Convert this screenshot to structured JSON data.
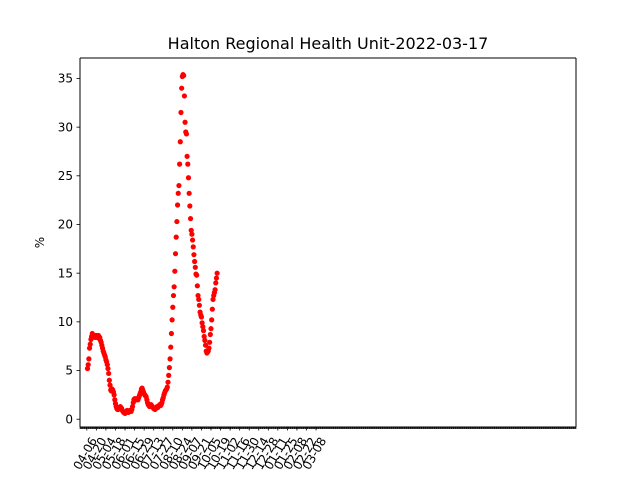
{
  "chart_data": {
    "type": "scatter",
    "title": "Halton Regional Health Unit-2022-03-17",
    "xlabel": "",
    "ylabel": "%",
    "x_type": "date",
    "xlim": [
      "2020-03-27",
      "2022-03-24"
    ],
    "ylim": [
      -0.8,
      37.1
    ],
    "yticks": [
      0,
      5,
      10,
      15,
      20,
      25,
      30,
      35
    ],
    "xticks": [
      "2020-04-06",
      "2020-04-20",
      "2020-05-04",
      "2020-05-18",
      "2020-06-01",
      "2020-06-15",
      "2020-06-29",
      "2020-07-13",
      "2020-07-27",
      "2020-08-10",
      "2020-08-24",
      "2020-09-07",
      "2020-09-21",
      "2020-10-05",
      "2020-10-19",
      "2020-11-02",
      "2020-11-16",
      "2020-11-30",
      "2020-12-14",
      "2020-12-28",
      "2021-01-11",
      "2021-01-25",
      "2021-02-08",
      "2021-02-22",
      "2021-03-08"
    ],
    "xtick_labels": [
      "04-06",
      "04-20",
      "05-04",
      "05-18",
      "06-01",
      "06-15",
      "06-29",
      "07-13",
      "07-27",
      "08-10",
      "08-24",
      "09-07",
      "09-21",
      "10-05",
      "10-19",
      "11-02",
      "11-16",
      "11-30",
      "12-14",
      "12-28",
      "01-11",
      "01-25",
      "02-08",
      "02-22",
      "03-08"
    ],
    "minor_ticks": "daily",
    "marker_color": "#ff0000",
    "grid": false,
    "series": [
      {
        "marker": "circle",
        "color": "#ff0000",
        "points": [
          [
            "2020-04-07",
            5.2
          ],
          [
            "2020-04-08",
            5.6
          ],
          [
            "2020-04-09",
            6.2
          ],
          [
            "2020-04-10",
            7.3
          ],
          [
            "2020-04-11",
            7.7
          ],
          [
            "2020-04-12",
            8.2
          ],
          [
            "2020-04-13",
            8.5
          ],
          [
            "2020-04-14",
            8.8
          ],
          [
            "2020-04-15",
            8.6
          ],
          [
            "2020-04-16",
            8.5
          ],
          [
            "2020-04-17",
            8.6
          ],
          [
            "2020-04-18",
            8.4
          ],
          [
            "2020-04-19",
            8.5
          ],
          [
            "2020-04-20",
            8.6
          ],
          [
            "2020-04-21",
            8.4
          ],
          [
            "2020-04-22",
            8.5
          ],
          [
            "2020-04-23",
            8.6
          ],
          [
            "2020-04-24",
            8.3
          ],
          [
            "2020-04-25",
            8.4
          ],
          [
            "2020-04-26",
            8.1
          ],
          [
            "2020-04-27",
            7.9
          ],
          [
            "2020-04-28",
            7.6
          ],
          [
            "2020-04-29",
            7.3
          ],
          [
            "2020-04-30",
            7.0
          ],
          [
            "2020-05-01",
            6.8
          ],
          [
            "2020-05-02",
            6.6
          ],
          [
            "2020-05-03",
            6.4
          ],
          [
            "2020-05-04",
            6.1
          ],
          [
            "2020-05-05",
            5.9
          ],
          [
            "2020-05-06",
            5.6
          ],
          [
            "2020-05-07",
            5.2
          ],
          [
            "2020-05-08",
            4.7
          ],
          [
            "2020-05-09",
            4.0
          ],
          [
            "2020-05-10",
            3.5
          ],
          [
            "2020-05-11",
            3.0
          ],
          [
            "2020-05-12",
            2.9
          ],
          [
            "2020-05-13",
            3.1
          ],
          [
            "2020-05-14",
            3.0
          ],
          [
            "2020-05-15",
            2.8
          ],
          [
            "2020-05-16",
            2.5
          ],
          [
            "2020-05-17",
            2.0
          ],
          [
            "2020-05-18",
            1.6
          ],
          [
            "2020-05-19",
            1.3
          ],
          [
            "2020-05-20",
            1.1
          ],
          [
            "2020-05-21",
            1.0
          ],
          [
            "2020-05-22",
            1.0
          ],
          [
            "2020-05-23",
            1.1
          ],
          [
            "2020-05-24",
            1.2
          ],
          [
            "2020-05-25",
            1.3
          ],
          [
            "2020-05-26",
            1.2
          ],
          [
            "2020-05-27",
            1.1
          ],
          [
            "2020-05-28",
            0.9
          ],
          [
            "2020-05-29",
            0.8
          ],
          [
            "2020-05-30",
            0.7
          ],
          [
            "2020-05-31",
            0.7
          ],
          [
            "2020-06-01",
            0.6
          ],
          [
            "2020-06-02",
            0.7
          ],
          [
            "2020-06-03",
            0.8
          ],
          [
            "2020-06-04",
            0.9
          ],
          [
            "2020-06-05",
            0.8
          ],
          [
            "2020-06-06",
            0.7
          ],
          [
            "2020-06-07",
            0.8
          ],
          [
            "2020-06-08",
            0.9
          ],
          [
            "2020-06-09",
            0.9
          ],
          [
            "2020-06-10",
            0.8
          ],
          [
            "2020-06-11",
            1.0
          ],
          [
            "2020-06-12",
            1.3
          ],
          [
            "2020-06-13",
            1.7
          ],
          [
            "2020-06-14",
            2.0
          ],
          [
            "2020-06-15",
            2.1
          ],
          [
            "2020-06-16",
            2.0
          ],
          [
            "2020-06-17",
            2.1
          ],
          [
            "2020-06-18",
            2.0
          ],
          [
            "2020-06-19",
            2.1
          ],
          [
            "2020-06-20",
            2.0
          ],
          [
            "2020-06-21",
            2.2
          ],
          [
            "2020-06-22",
            2.4
          ],
          [
            "2020-06-23",
            2.6
          ],
          [
            "2020-06-24",
            2.8
          ],
          [
            "2020-06-25",
            3.1
          ],
          [
            "2020-06-26",
            3.2
          ],
          [
            "2020-06-27",
            3.0
          ],
          [
            "2020-06-28",
            2.8
          ],
          [
            "2020-06-29",
            2.6
          ],
          [
            "2020-06-30",
            2.5
          ],
          [
            "2020-07-01",
            2.4
          ],
          [
            "2020-07-02",
            2.3
          ],
          [
            "2020-07-03",
            2.0
          ],
          [
            "2020-07-04",
            1.7
          ],
          [
            "2020-07-05",
            1.5
          ],
          [
            "2020-07-06",
            1.4
          ],
          [
            "2020-07-07",
            1.3
          ],
          [
            "2020-07-08",
            1.4
          ],
          [
            "2020-07-09",
            1.5
          ],
          [
            "2020-07-10",
            1.4
          ],
          [
            "2020-07-11",
            1.3
          ],
          [
            "2020-07-12",
            1.2
          ],
          [
            "2020-07-13",
            1.1
          ],
          [
            "2020-07-14",
            1.1
          ],
          [
            "2020-07-15",
            1.0
          ],
          [
            "2020-07-16",
            1.1
          ],
          [
            "2020-07-17",
            1.2
          ],
          [
            "2020-07-18",
            1.3
          ],
          [
            "2020-07-19",
            1.2
          ],
          [
            "2020-07-20",
            1.3
          ],
          [
            "2020-07-21",
            1.4
          ],
          [
            "2020-07-22",
            1.5
          ],
          [
            "2020-07-23",
            1.4
          ],
          [
            "2020-07-24",
            1.5
          ],
          [
            "2020-07-25",
            1.7
          ],
          [
            "2020-07-26",
            2.0
          ],
          [
            "2020-07-27",
            2.2
          ],
          [
            "2020-07-28",
            2.5
          ],
          [
            "2020-07-29",
            2.7
          ],
          [
            "2020-07-30",
            2.9
          ],
          [
            "2020-07-31",
            3.0
          ],
          [
            "2020-08-01",
            3.1
          ],
          [
            "2020-08-02",
            3.3
          ],
          [
            "2020-08-03",
            3.8
          ],
          [
            "2020-08-04",
            4.5
          ],
          [
            "2020-08-05",
            5.3
          ],
          [
            "2020-08-06",
            6.2
          ],
          [
            "2020-08-07",
            7.4
          ],
          [
            "2020-08-08",
            8.8
          ],
          [
            "2020-08-09",
            10.2
          ],
          [
            "2020-08-10",
            11.5
          ],
          [
            "2020-08-11",
            12.7
          ],
          [
            "2020-08-12",
            13.6
          ],
          [
            "2020-08-13",
            15.2
          ],
          [
            "2020-08-14",
            17.0
          ],
          [
            "2020-08-15",
            18.7
          ],
          [
            "2020-08-16",
            20.3
          ],
          [
            "2020-08-17",
            22.0
          ],
          [
            "2020-08-18",
            23.2
          ],
          [
            "2020-08-19",
            24.0
          ],
          [
            "2020-08-20",
            26.2
          ],
          [
            "2020-08-21",
            28.5
          ],
          [
            "2020-08-22",
            31.5
          ],
          [
            "2020-08-23",
            34.0
          ],
          [
            "2020-08-24",
            35.2
          ],
          [
            "2020-08-25",
            35.4
          ],
          [
            "2020-08-26",
            35.3
          ],
          [
            "2020-08-27",
            33.2
          ],
          [
            "2020-08-28",
            30.5
          ],
          [
            "2020-08-29",
            29.5
          ],
          [
            "2020-08-30",
            29.3
          ],
          [
            "2020-08-31",
            27.0
          ],
          [
            "2020-09-01",
            26.2
          ],
          [
            "2020-09-02",
            24.8
          ],
          [
            "2020-09-03",
            23.2
          ],
          [
            "2020-09-04",
            21.9
          ],
          [
            "2020-09-05",
            20.6
          ],
          [
            "2020-09-06",
            19.4
          ],
          [
            "2020-09-07",
            19.0
          ],
          [
            "2020-09-08",
            18.4
          ],
          [
            "2020-09-09",
            17.7
          ],
          [
            "2020-09-10",
            16.9
          ],
          [
            "2020-09-11",
            16.2
          ],
          [
            "2020-09-12",
            15.6
          ],
          [
            "2020-09-13",
            14.9
          ],
          [
            "2020-09-14",
            14.8
          ],
          [
            "2020-09-15",
            13.7
          ],
          [
            "2020-09-16",
            12.7
          ],
          [
            "2020-09-17",
            12.3
          ],
          [
            "2020-09-18",
            11.7
          ],
          [
            "2020-09-19",
            11.0
          ],
          [
            "2020-09-20",
            10.7
          ],
          [
            "2020-09-21",
            10.5
          ],
          [
            "2020-09-22",
            9.9
          ],
          [
            "2020-09-23",
            9.5
          ],
          [
            "2020-09-24",
            9.1
          ],
          [
            "2020-09-25",
            8.5
          ],
          [
            "2020-09-26",
            8.1
          ],
          [
            "2020-09-27",
            7.6
          ],
          [
            "2020-09-28",
            7.0
          ],
          [
            "2020-09-29",
            6.8
          ],
          [
            "2020-09-30",
            6.9
          ],
          [
            "2020-10-01",
            7.0
          ],
          [
            "2020-10-02",
            7.3
          ],
          [
            "2020-10-03",
            7.9
          ],
          [
            "2020-10-04",
            8.7
          ],
          [
            "2020-10-05",
            9.3
          ],
          [
            "2020-10-06",
            10.2
          ],
          [
            "2020-10-07",
            11.3
          ],
          [
            "2020-10-08",
            12.3
          ],
          [
            "2020-10-09",
            12.7
          ],
          [
            "2020-10-10",
            13.0
          ],
          [
            "2020-10-11",
            13.3
          ],
          [
            "2020-10-12",
            14.0
          ],
          [
            "2020-10-13",
            14.5
          ],
          [
            "2020-10-14",
            15.0
          ]
        ]
      }
    ]
  }
}
